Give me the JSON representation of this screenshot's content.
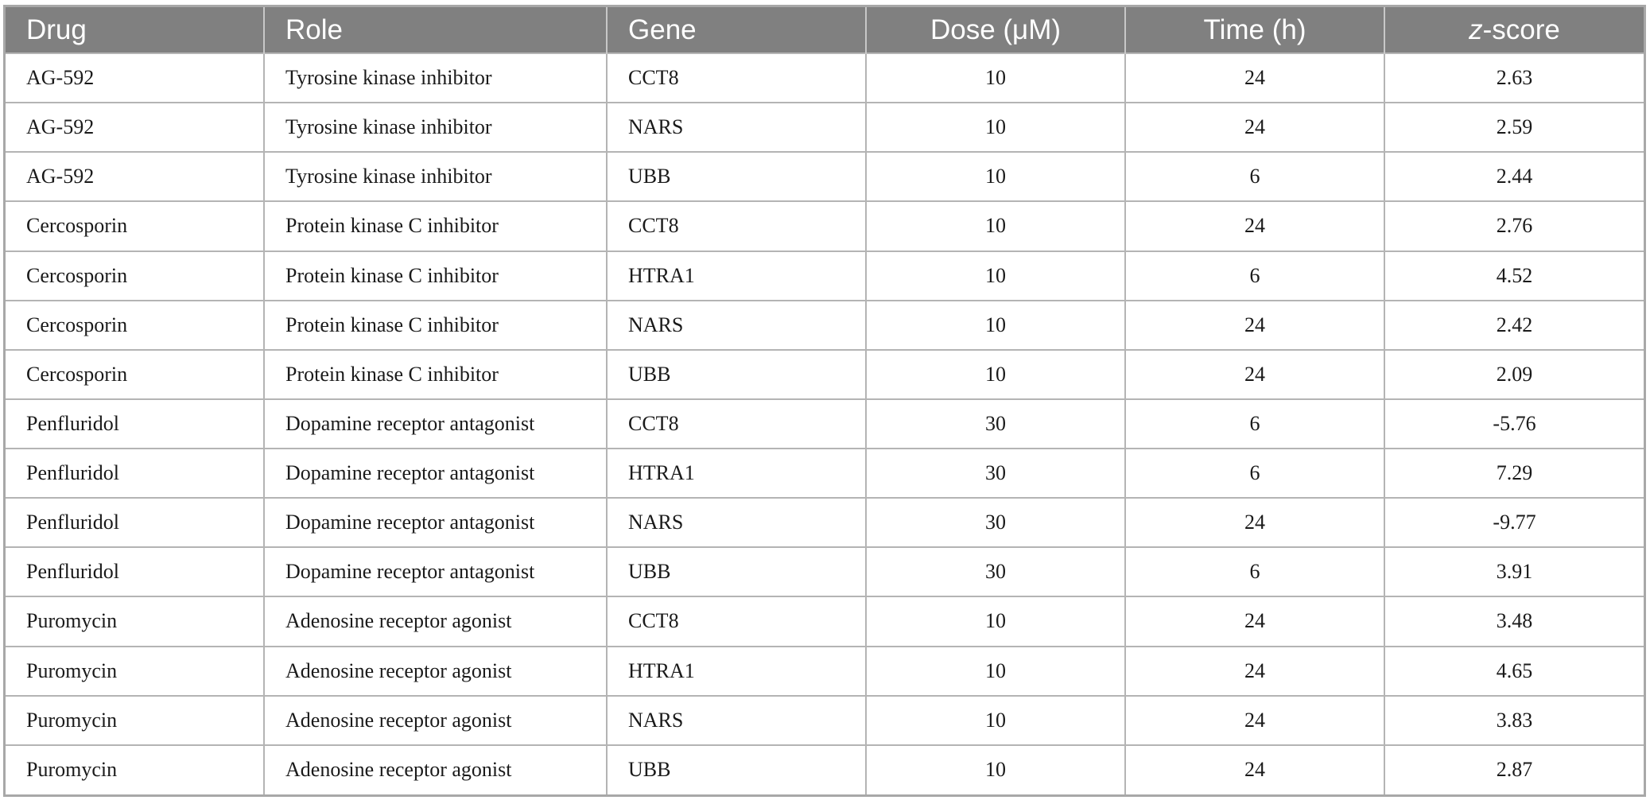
{
  "table": {
    "headers": {
      "drug": "Drug",
      "role": "Role",
      "gene": "Gene",
      "dose": "Dose (μM)",
      "time": "Time (h)",
      "z_italic": "z",
      "z_rest": "-score"
    },
    "rows": [
      {
        "drug": "AG-592",
        "role": "Tyrosine kinase inhibitor",
        "gene": "CCT8",
        "dose": "10",
        "time": "24",
        "z": "2.63"
      },
      {
        "drug": "AG-592",
        "role": "Tyrosine kinase inhibitor",
        "gene": "NARS",
        "dose": "10",
        "time": "24",
        "z": "2.59"
      },
      {
        "drug": "AG-592",
        "role": "Tyrosine kinase inhibitor",
        "gene": "UBB",
        "dose": "10",
        "time": "6",
        "z": "2.44"
      },
      {
        "drug": "Cercosporin",
        "role": "Protein kinase C inhibitor",
        "gene": "CCT8",
        "dose": "10",
        "time": "24",
        "z": "2.76"
      },
      {
        "drug": "Cercosporin",
        "role": "Protein kinase C inhibitor",
        "gene": "HTRA1",
        "dose": "10",
        "time": "6",
        "z": "4.52"
      },
      {
        "drug": "Cercosporin",
        "role": "Protein kinase C inhibitor",
        "gene": "NARS",
        "dose": "10",
        "time": "24",
        "z": "2.42"
      },
      {
        "drug": "Cercosporin",
        "role": "Protein kinase C inhibitor",
        "gene": "UBB",
        "dose": "10",
        "time": "24",
        "z": "2.09"
      },
      {
        "drug": "Penfluridol",
        "role": "Dopamine receptor antagonist",
        "gene": "CCT8",
        "dose": "30",
        "time": "6",
        "z": "-5.76"
      },
      {
        "drug": "Penfluridol",
        "role": "Dopamine receptor antagonist",
        "gene": "HTRA1",
        "dose": "30",
        "time": "6",
        "z": "7.29"
      },
      {
        "drug": "Penfluridol",
        "role": "Dopamine receptor antagonist",
        "gene": "NARS",
        "dose": "30",
        "time": "24",
        "z": "-9.77"
      },
      {
        "drug": "Penfluridol",
        "role": "Dopamine receptor antagonist",
        "gene": "UBB",
        "dose": "30",
        "time": "6",
        "z": "3.91"
      },
      {
        "drug": "Puromycin",
        "role": "Adenosine receptor agonist",
        "gene": "CCT8",
        "dose": "10",
        "time": "24",
        "z": "3.48"
      },
      {
        "drug": "Puromycin",
        "role": "Adenosine receptor agonist",
        "gene": "HTRA1",
        "dose": "10",
        "time": "24",
        "z": "4.65"
      },
      {
        "drug": "Puromycin",
        "role": "Adenosine receptor agonist",
        "gene": "NARS",
        "dose": "10",
        "time": "24",
        "z": "3.83"
      },
      {
        "drug": "Puromycin",
        "role": "Adenosine receptor agonist",
        "gene": "UBB",
        "dose": "10",
        "time": "24",
        "z": "2.87"
      }
    ]
  },
  "colors": {
    "header_bg": "#808080",
    "header_text": "#ffffff",
    "grid": "#b4b4b4"
  }
}
